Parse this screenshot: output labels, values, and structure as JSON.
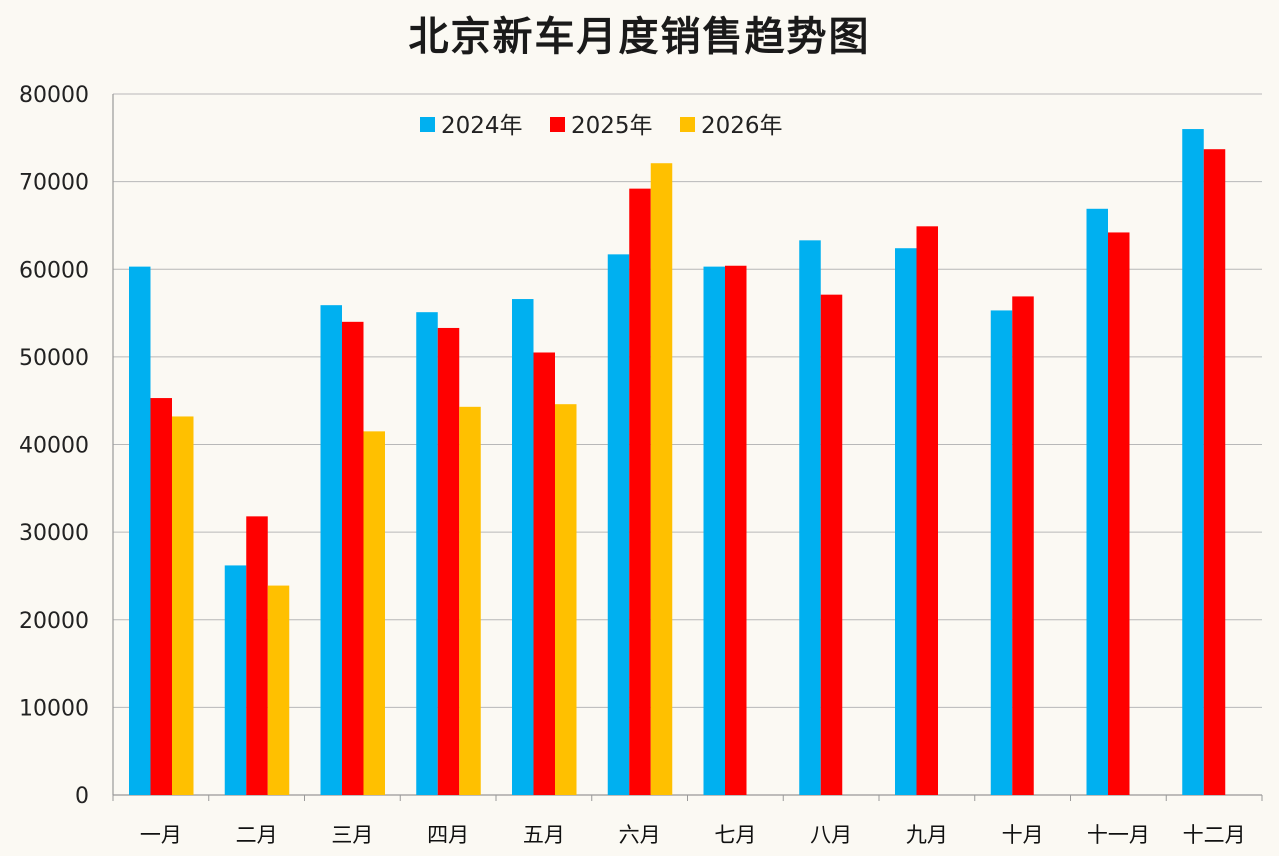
{
  "chart_data": {
    "type": "bar",
    "title": "北京新车月度销售趋势图",
    "categories": [
      "一月",
      "二月",
      "三月",
      "四月",
      "五月",
      "六月",
      "七月",
      "八月",
      "九月",
      "十月",
      "十一月",
      "十二月"
    ],
    "series": [
      {
        "name": "2024年",
        "color": "#00b0f0",
        "values": [
          60300,
          26200,
          55900,
          55100,
          56600,
          61700,
          60300,
          63300,
          62400,
          55300,
          66900,
          76000
        ]
      },
      {
        "name": "2025年",
        "color": "#ff0000",
        "values": [
          45300,
          31800,
          54000,
          53300,
          50500,
          69200,
          60400,
          57100,
          64900,
          56900,
          64200,
          73700
        ]
      },
      {
        "name": "2026年",
        "color": "#ffc000",
        "values": [
          43200,
          23900,
          41500,
          44300,
          44600,
          72100,
          null,
          null,
          null,
          null,
          null,
          null
        ]
      }
    ],
    "ylim": [
      0,
      80000
    ],
    "yticks": [
      0,
      10000,
      20000,
      30000,
      40000,
      50000,
      60000,
      70000,
      80000
    ],
    "grid": true,
    "legend_position": "top-center",
    "xlabel": "",
    "ylabel": ""
  }
}
